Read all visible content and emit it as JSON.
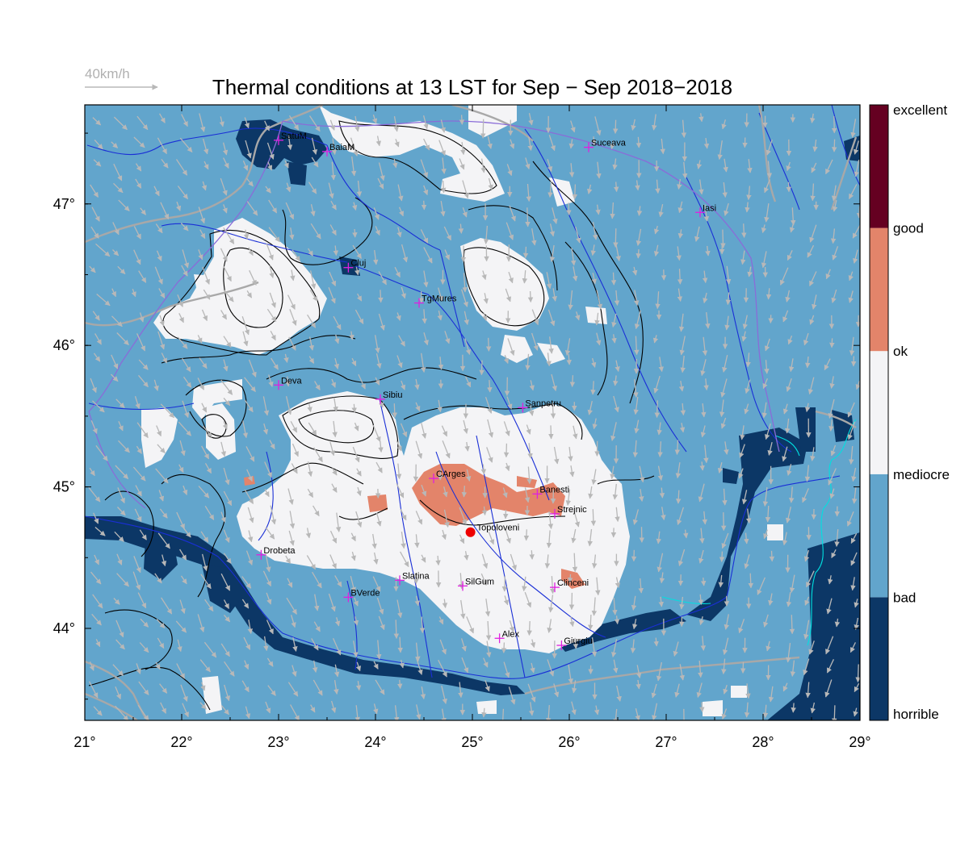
{
  "title": "Thermal conditions at 13 LST for Sep − Sep  2018−2018",
  "wind_reference": {
    "label": "40km/h"
  },
  "map": {
    "lon_range": [
      21,
      29
    ],
    "lat_range": [
      43.35,
      47.7
    ],
    "x_ticks": [
      "21°",
      "22°",
      "23°",
      "24°",
      "25°",
      "26°",
      "27°",
      "28°",
      "29°"
    ],
    "y_ticks": [
      "44°",
      "45°",
      "46°",
      "47°"
    ],
    "y_tick_values": [
      44,
      45,
      46,
      47
    ],
    "colors": {
      "horrible": "#0c3766",
      "bad": "#62a5cc",
      "mediocre": "#f4f4f6",
      "ok": "#e3846a",
      "good": "#650021",
      "wind_arrow": "#b8b8b8",
      "river": "#1a2fd6",
      "border": "#a8a8a8",
      "contour": "#000000",
      "city_marker": "#e020e0",
      "highlight_marker": "#ee0000"
    },
    "cities": [
      {
        "name": "SatuM",
        "lon": 23.0,
        "lat": 47.45
      },
      {
        "name": "BaiaM",
        "lon": 23.5,
        "lat": 47.37
      },
      {
        "name": "Suceava",
        "lon": 26.2,
        "lat": 47.4
      },
      {
        "name": "Iasi",
        "lon": 27.35,
        "lat": 46.94
      },
      {
        "name": "Cluj",
        "lon": 23.72,
        "lat": 46.55
      },
      {
        "name": "TgMures",
        "lon": 24.45,
        "lat": 46.3
      },
      {
        "name": "Deva",
        "lon": 23.0,
        "lat": 45.72
      },
      {
        "name": "Sibiu",
        "lon": 24.05,
        "lat": 45.62
      },
      {
        "name": "Sanpetru",
        "lon": 25.52,
        "lat": 45.56
      },
      {
        "name": "CArges",
        "lon": 24.6,
        "lat": 45.06
      },
      {
        "name": "Banesti",
        "lon": 25.67,
        "lat": 44.95
      },
      {
        "name": "Strejnic",
        "lon": 25.85,
        "lat": 44.81
      },
      {
        "name": "Drobeta",
        "lon": 22.82,
        "lat": 44.52
      },
      {
        "name": "Slatina",
        "lon": 24.25,
        "lat": 44.34
      },
      {
        "name": "SilGum",
        "lon": 24.9,
        "lat": 44.3
      },
      {
        "name": "Clinceni",
        "lon": 25.85,
        "lat": 44.29
      },
      {
        "name": "BVerde",
        "lon": 23.72,
        "lat": 44.22
      },
      {
        "name": "Alex",
        "lon": 25.28,
        "lat": 43.93
      },
      {
        "name": "Giurgiu",
        "lon": 25.92,
        "lat": 43.88
      }
    ],
    "highlight": {
      "name": "Topoloveni",
      "lon": 24.98,
      "lat": 44.68
    }
  },
  "colorbar": {
    "levels": [
      {
        "label": "horrible",
        "color": "#0c3766"
      },
      {
        "label": "bad",
        "color": "#62a5cc"
      },
      {
        "label": "mediocre",
        "color": "#f4f4f6"
      },
      {
        "label": "ok",
        "color": "#e3846a"
      },
      {
        "label": "good",
        "color": "#650021"
      },
      {
        "label": "excellent",
        "color": "#650021"
      }
    ]
  }
}
